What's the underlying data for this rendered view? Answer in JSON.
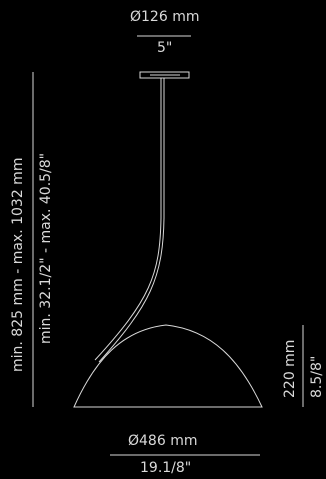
{
  "top_diameter": {
    "mm": "Ø126 mm",
    "inch": "5\""
  },
  "height_outer": {
    "text": "min. 825 mm - max. 1032 mm"
  },
  "height_inner": {
    "text": "min. 32.1/2\" - max. 40.5/8\""
  },
  "shade_height": {
    "mm": "220 mm",
    "inch": "8.5/8\""
  },
  "shade_diameter": {
    "mm": "Ø486 mm",
    "inch": "19.1/8\""
  },
  "colors": {
    "background": "#000000",
    "lines": "#d9d9d9"
  }
}
